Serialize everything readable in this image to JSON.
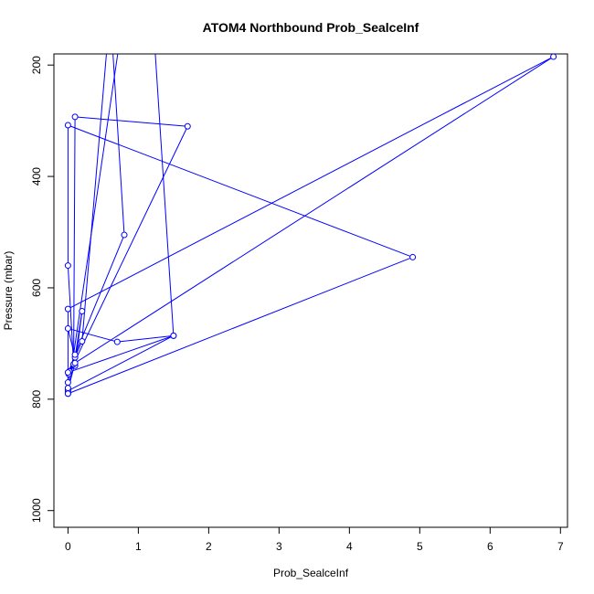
{
  "chart_data": {
    "type": "line",
    "title": "ATOM4 Northbound Prob_SealceInf",
    "xlabel": "Prob_SealceInf",
    "ylabel": "Pressure (mbar)",
    "xlim": [
      -0.2,
      7.1
    ],
    "ylim": [
      1030,
      180
    ],
    "y_inverted": true,
    "x_ticks": [
      0,
      1,
      2,
      3,
      4,
      5,
      6,
      7
    ],
    "y_ticks": [
      200,
      400,
      600,
      800,
      1000
    ],
    "grid": false,
    "series": [
      {
        "color": "#0000ff",
        "marker": "open-circle",
        "x": [
          0,
          0.02,
          0.1,
          0.2,
          0.1,
          0,
          0.7,
          1.5,
          1.2,
          0.6,
          0.8,
          0.1,
          0.01,
          1.7,
          0.1,
          0.08,
          0,
          0,
          4.9,
          0,
          0,
          6.9,
          0.1,
          0,
          0,
          0.8,
          0.6,
          0.2,
          0,
          1.5,
          0,
          0,
          0
        ],
        "y": [
          770,
          750,
          740,
          642,
          725,
          673,
          697,
          686,
          100,
          100,
          505,
          720,
          755,
          310,
          293,
          737,
          560,
          308,
          545,
          790,
          638,
          185,
          735,
          783,
          788,
          100,
          100,
          696,
          752,
          686,
          785,
          780,
          790
        ]
      }
    ]
  }
}
